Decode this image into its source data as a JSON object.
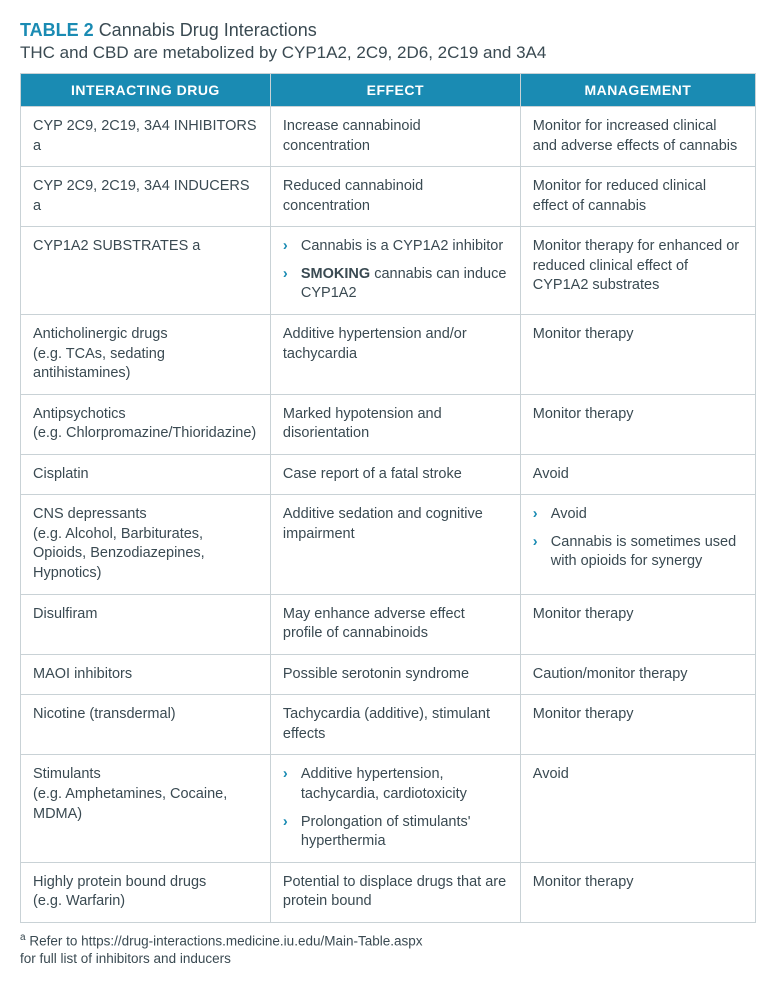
{
  "title": {
    "label": "TABLE 2",
    "text": "Cannabis Drug Interactions"
  },
  "subtitle": "THC and CBD are metabolized by CYP1A2, 2C9, 2D6, 2C19 and 3A4",
  "columns": [
    "INTERACTING DRUG",
    "EFFECT",
    "MANAGEMENT"
  ],
  "col_widths": [
    "34%",
    "34%",
    "32%"
  ],
  "header_bg": "#1a8bb3",
  "header_fg": "#ffffff",
  "border_color": "#c9d2d6",
  "text_color": "#3a4a52",
  "accent_color": "#1a8bb3",
  "rows": [
    {
      "drug": {
        "type": "text",
        "value": "CYP 2C9, 2C19, 3A4 INHIBITORS a"
      },
      "effect": {
        "type": "text",
        "value": "Increase cannabinoid concentration"
      },
      "management": {
        "type": "text",
        "value": "Monitor for increased clinical and adverse effects of cannabis"
      }
    },
    {
      "drug": {
        "type": "text",
        "value": "CYP 2C9, 2C19, 3A4 INDUCERS a"
      },
      "effect": {
        "type": "text",
        "value": "Reduced cannabinoid concentration"
      },
      "management": {
        "type": "text",
        "value": "Monitor for reduced clinical effect of cannabis"
      }
    },
    {
      "drug": {
        "type": "text",
        "value": "CYP1A2 SUBSTRATES a"
      },
      "effect": {
        "type": "list",
        "items": [
          {
            "pre": "Cannabis is a CYP1A2 inhibitor"
          },
          {
            "bold": "SMOKING",
            "post": " cannabis can induce CYP1A2"
          }
        ]
      },
      "management": {
        "type": "text",
        "value": "Monitor therapy for enhanced or reduced clinical effect of CYP1A2 substrates"
      }
    },
    {
      "drug": {
        "type": "multi",
        "lines": [
          "Anticholinergic drugs",
          "(e.g. TCAs, sedating antihistamines)"
        ]
      },
      "effect": {
        "type": "text",
        "value": "Additive hypertension and/or tachycardia"
      },
      "management": {
        "type": "text",
        "value": "Monitor therapy"
      }
    },
    {
      "drug": {
        "type": "multi",
        "lines": [
          "Antipsychotics",
          "(e.g. Chlorpromazine/Thioridazine)"
        ]
      },
      "effect": {
        "type": "text",
        "value": "Marked hypotension and disorientation"
      },
      "management": {
        "type": "text",
        "value": "Monitor therapy"
      }
    },
    {
      "drug": {
        "type": "text",
        "value": "Cisplatin"
      },
      "effect": {
        "type": "text",
        "value": "Case report of a fatal stroke"
      },
      "management": {
        "type": "text",
        "value": "Avoid"
      }
    },
    {
      "drug": {
        "type": "multi",
        "lines": [
          "CNS depressants",
          "(e.g. Alcohol, Barbiturates, Opioids, Benzodiazepines, Hypnotics)"
        ]
      },
      "effect": {
        "type": "text",
        "value": "Additive sedation and cognitive impairment"
      },
      "management": {
        "type": "list",
        "items": [
          {
            "pre": "Avoid"
          },
          {
            "pre": "Cannabis is sometimes used with opioids for synergy"
          }
        ]
      }
    },
    {
      "drug": {
        "type": "text",
        "value": "Disulfiram"
      },
      "effect": {
        "type": "text",
        "value": "May enhance adverse effect profile of cannabinoids"
      },
      "management": {
        "type": "text",
        "value": "Monitor therapy"
      }
    },
    {
      "drug": {
        "type": "text",
        "value": "MAOI inhibitors"
      },
      "effect": {
        "type": "text",
        "value": "Possible serotonin syndrome"
      },
      "management": {
        "type": "text",
        "value": "Caution/monitor therapy"
      }
    },
    {
      "drug": {
        "type": "text",
        "value": "Nicotine (transdermal)"
      },
      "effect": {
        "type": "text",
        "value": "Tachycardia (additive), stimulant effects"
      },
      "management": {
        "type": "text",
        "value": "Monitor therapy"
      }
    },
    {
      "drug": {
        "type": "multi",
        "lines": [
          "Stimulants",
          "(e.g. Amphetamines, Cocaine, MDMA)"
        ]
      },
      "effect": {
        "type": "list",
        "items": [
          {
            "pre": "Additive hypertension, tachycardia, cardiotoxicity"
          },
          {
            "pre": "Prolongation of stimulants' hyperthermia"
          }
        ]
      },
      "management": {
        "type": "text",
        "value": "Avoid"
      }
    },
    {
      "drug": {
        "type": "multi",
        "lines": [
          "Highly protein bound drugs",
          "(e.g. Warfarin)"
        ]
      },
      "effect": {
        "type": "text",
        "value": "Potential to displace drugs that are protein bound"
      },
      "management": {
        "type": "text",
        "value": "Monitor therapy"
      }
    }
  ],
  "footnote": {
    "marker": "a",
    "line1": " Refer to https://drug-interactions.medicine.iu.edu/Main-Table.aspx",
    "line2": "for full list of inhibitors and inducers"
  }
}
